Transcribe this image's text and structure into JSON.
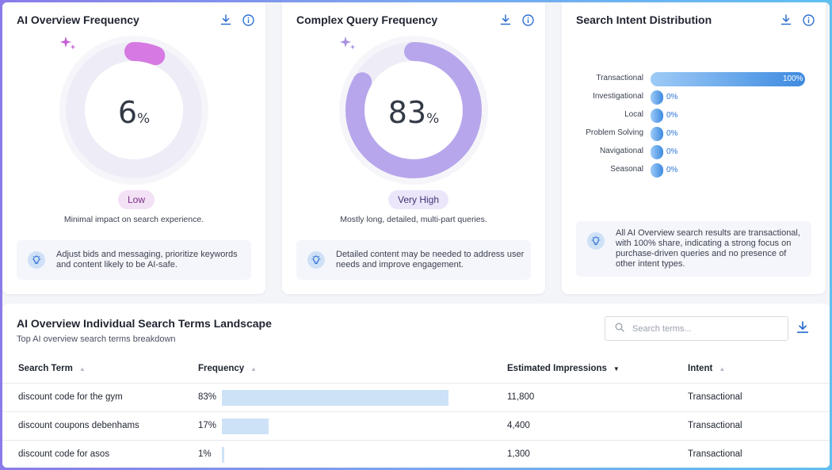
{
  "cards": [
    {
      "title": "AI Overview Frequency",
      "value": 6,
      "value_text": "6",
      "unit": "%",
      "badge": "Low",
      "caption": "Minimal impact on search experience.",
      "tip": "Adjust bids and messaging, prioritize keywords and content likely to be AI-safe.",
      "ring_color": "#d679e2",
      "badge_bg": "#f3e1f5",
      "badge_color": "#7a2f86"
    },
    {
      "title": "Complex Query Frequency",
      "value": 83,
      "value_text": "83",
      "unit": "%",
      "badge": "Very High",
      "caption": "Mostly long, detailed, multi-part queries.",
      "tip": "Detailed content may be needed to address user needs and improve engagement.",
      "ring_color": "#b8a6ec",
      "badge_bg": "#ece6fb",
      "badge_color": "#3e3672"
    },
    {
      "title": "Search Intent Distribution",
      "tip": "All AI Overview search results are transactional, with 100% share, indicating a strong focus on purchase-driven queries and no presence of other intent types."
    }
  ],
  "chart_data": {
    "type": "bar",
    "orientation": "horizontal",
    "categories": [
      "Transactional",
      "Investigational",
      "Local",
      "Problem Solving",
      "Navigational",
      "Seasonal"
    ],
    "values": [
      100,
      0,
      0,
      0,
      0,
      0
    ],
    "labels": [
      "100%",
      "0%",
      "0%",
      "0%",
      "0%",
      "0%"
    ],
    "xlim": [
      0,
      100
    ]
  },
  "landscape": {
    "title": "AI Overview Individual Search Terms Landscape",
    "subtitle": "Top AI overview search terms breakdown",
    "search_placeholder": "Search terms...",
    "columns": [
      "Search Term",
      "Frequency",
      "Estimated Impressions",
      "Intent"
    ],
    "rows": [
      {
        "term": "discount code for the gym",
        "freq": 83,
        "freq_text": "83%",
        "impressions": "11,800",
        "intent": "Transactional"
      },
      {
        "term": "discount coupons debenhams",
        "freq": 17,
        "freq_text": "17%",
        "impressions": "4,400",
        "intent": "Transactional"
      },
      {
        "term": "discount code for asos",
        "freq": 1,
        "freq_text": "1%",
        "impressions": "1,300",
        "intent": "Transactional"
      }
    ]
  },
  "icons": {
    "download": "download-icon",
    "info": "info-icon",
    "sparkle": "sparkle-icon",
    "bulb": "lightbulb-icon",
    "search": "search-icon"
  }
}
